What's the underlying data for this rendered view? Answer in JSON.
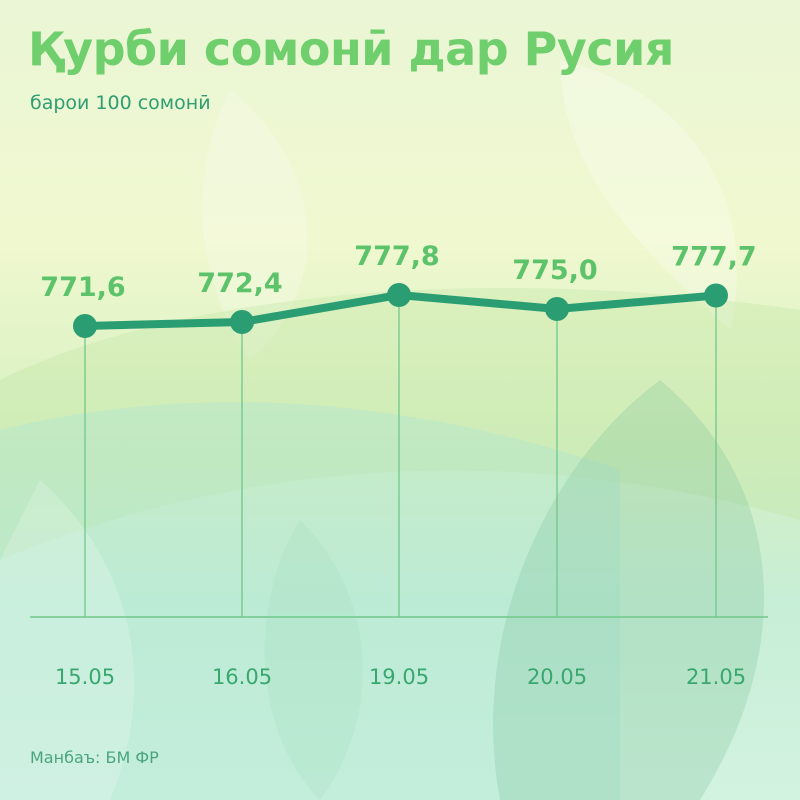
{
  "title": "Қурби сомонӣ дар Русия",
  "subtitle": "барои 100 сомонӣ",
  "source": "Манбаъ: БМ ФР",
  "colors": {
    "line": "#2a9e72",
    "point": "#2a9e72",
    "value_label": "#5cc36b",
    "title": "#6fcf6d",
    "axis": "#6fc88a"
  },
  "chart_data": {
    "type": "line",
    "title": "Қурби сомонӣ дар Русия",
    "subtitle": "барои 100 сомонӣ",
    "categories": [
      "15.05",
      "16.05",
      "19.05",
      "20.05",
      "21.05"
    ],
    "values": [
      771.6,
      772.4,
      777.8,
      775.0,
      777.7
    ],
    "value_labels": [
      "771,6",
      "772,4",
      "777,8",
      "775,0",
      "777,7"
    ],
    "grid": false,
    "legend": "none",
    "xlabel": "",
    "ylabel": ""
  }
}
